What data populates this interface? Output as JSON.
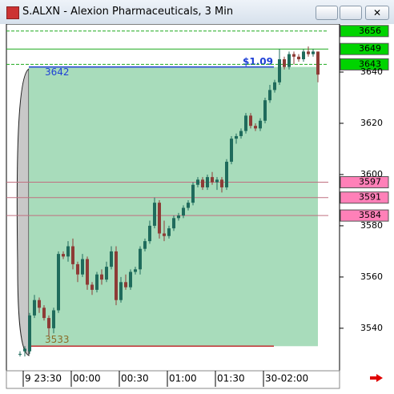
{
  "window": {
    "title": "S.ALXN - Alexion Pharmaceuticals, 3 Min"
  },
  "chart_data": {
    "type": "candlestick",
    "categories": [
      null,
      null,
      null,
      null,
      null,
      null,
      null,
      null,
      null,
      null,
      null,
      null,
      null,
      null,
      null,
      null,
      null,
      null,
      null,
      null,
      null,
      null,
      null,
      null,
      null,
      null,
      null,
      null,
      null,
      null,
      null,
      null,
      null,
      null,
      null,
      null,
      null,
      null,
      null,
      null,
      null,
      null,
      null,
      null,
      null,
      null,
      null,
      null,
      null,
      null,
      null,
      null,
      null,
      null,
      null,
      null,
      null,
      null,
      null,
      null,
      null,
      null,
      null
    ],
    "open": [
      3530,
      3531,
      3531,
      3545,
      3551,
      3548,
      3544,
      3540,
      3547,
      3569,
      3568,
      3572,
      3565,
      3561,
      3567,
      3557,
      3555,
      3561,
      3559,
      3564,
      3570,
      3551,
      3558,
      3556,
      3562,
      3563,
      3571,
      3574,
      3580,
      3589,
      3577,
      3576,
      3579,
      3583,
      3584,
      3587,
      3589,
      3596,
      3598,
      3595,
      3599,
      3597,
      3598,
      3595,
      3605,
      3614,
      3615,
      3617,
      3623,
      3619,
      3618,
      3621,
      3629,
      3633,
      3636,
      3645,
      3642,
      3647,
      3646,
      3645,
      3648,
      3647,
      3648
    ],
    "high": [
      3531,
      3533,
      3546,
      3553,
      3552,
      3549,
      3545,
      3548,
      3570,
      3570,
      3574,
      3575,
      3566,
      3569,
      3568,
      3558,
      3562,
      3563,
      3566,
      3572,
      3572,
      3560,
      3561,
      3563,
      3564,
      3572,
      3575,
      3582,
      3591,
      3590,
      3582,
      3580,
      3584,
      3585,
      3588,
      3590,
      3597,
      3599,
      3599,
      3600,
      3601,
      3599,
      3599,
      3606,
      3615,
      3616,
      3618,
      3624,
      3624,
      3620,
      3622,
      3630,
      3635,
      3637,
      3649,
      3646,
      3648,
      3648,
      3647,
      3649,
      3650,
      3649,
      3648
    ],
    "low": [
      3529,
      3529,
      3530,
      3544,
      3546,
      3543,
      3537,
      3538,
      3546,
      3567,
      3566,
      3563,
      3558,
      3560,
      3555,
      3553,
      3554,
      3557,
      3558,
      3563,
      3549,
      3550,
      3555,
      3555,
      3561,
      3561,
      3570,
      3573,
      3579,
      3575,
      3574,
      3575,
      3578,
      3582,
      3583,
      3586,
      3588,
      3595,
      3594,
      3594,
      3596,
      3594,
      3593,
      3594,
      3604,
      3612,
      3614,
      3616,
      3618,
      3617,
      3617,
      3620,
      3628,
      3632,
      3635,
      3641,
      3641,
      3643,
      3644,
      3644,
      3646,
      3646,
      3636
    ],
    "close": [
      3530,
      3532,
      3545,
      3551,
      3548,
      3544,
      3540,
      3547,
      3569,
      3568,
      3572,
      3565,
      3561,
      3567,
      3557,
      3555,
      3561,
      3559,
      3564,
      3570,
      3551,
      3558,
      3556,
      3562,
      3563,
      3571,
      3574,
      3580,
      3589,
      3577,
      3576,
      3579,
      3583,
      3584,
      3587,
      3589,
      3596,
      3598,
      3595,
      3599,
      3597,
      3598,
      3595,
      3605,
      3614,
      3615,
      3617,
      3623,
      3619,
      3618,
      3621,
      3629,
      3633,
      3636,
      3645,
      3642,
      3647,
      3646,
      3645,
      3648,
      3647,
      3648,
      3639
    ],
    "up_color": "#1f6b5c",
    "down_color": "#8e3b36",
    "ylim": [
      3523.4,
      3658.75
    ],
    "yticks": [
      3540,
      3560,
      3580,
      3600,
      3620,
      3640
    ],
    "xticks": [
      {
        "value": 1,
        "label": "9 23:30"
      },
      {
        "value": 11,
        "label": "00:00"
      },
      {
        "value": 21,
        "label": "00:30"
      },
      {
        "value": 31,
        "label": "01:00"
      },
      {
        "value": 41,
        "label": "01:30"
      },
      {
        "value": 51,
        "label": "30-02:00"
      }
    ],
    "levels": [
      {
        "value": 3656,
        "color": "#1faa1f",
        "style": "dashed",
        "box": "#00d400"
      },
      {
        "value": 3649,
        "color": "#1faa1f",
        "style": "solid",
        "box": "#00d400"
      },
      {
        "value": 3643,
        "color": "#1faa1f",
        "style": "dashed",
        "box": "#00d400"
      },
      {
        "value": 3597,
        "color": "#c07080",
        "style": "solid",
        "box": "#ff80b8"
      },
      {
        "value": 3591,
        "color": "#c07080",
        "style": "solid",
        "box": "#ff80b8"
      },
      {
        "value": 3584,
        "color": "#c07080",
        "style": "solid",
        "box": "#ff80b8"
      }
    ],
    "position": {
      "entry": 3642,
      "stop": 3533,
      "profit": {
        "value": 1.09,
        "label": "$1.09"
      }
    }
  }
}
